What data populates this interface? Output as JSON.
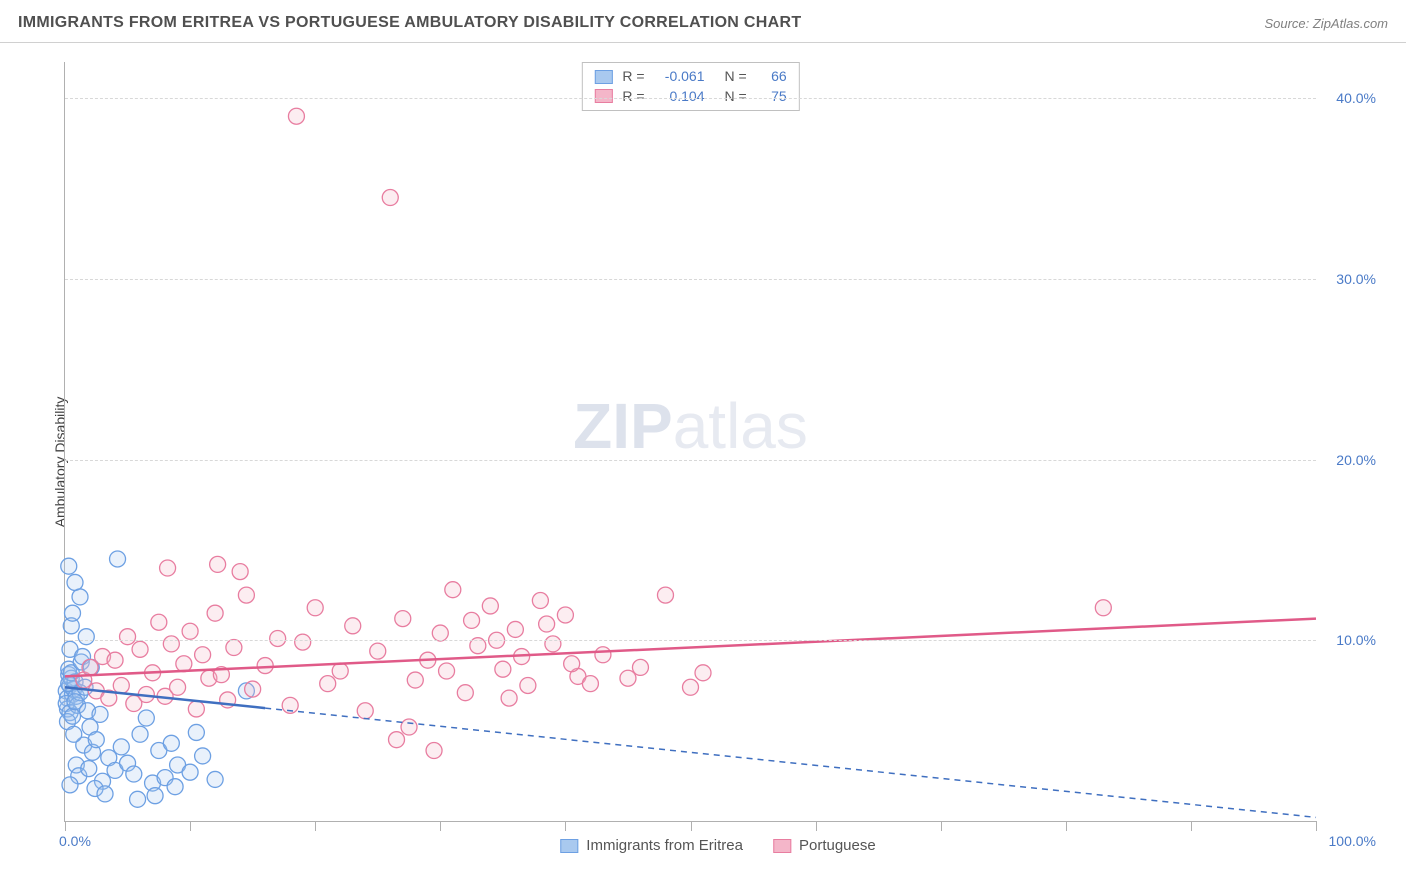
{
  "title": "IMMIGRANTS FROM ERITREA VS PORTUGUESE AMBULATORY DISABILITY CORRELATION CHART",
  "source": "Source: ZipAtlas.com",
  "ylabel": "Ambulatory Disability",
  "watermark_bold": "ZIP",
  "watermark_light": "atlas",
  "chart": {
    "type": "scatter",
    "xlim": [
      0,
      100
    ],
    "ylim": [
      0,
      42
    ],
    "yticks": [
      10,
      20,
      30,
      40
    ],
    "ytick_labels": [
      "10.0%",
      "20.0%",
      "30.0%",
      "40.0%"
    ],
    "xticks_minor": [
      0,
      10,
      20,
      30,
      40,
      50,
      60,
      70,
      80,
      90,
      100
    ],
    "x_origin_label": "0.0%",
    "x_end_label": "100.0%",
    "ylabel_right_color": "#4a7ac7",
    "grid_color": "#d8d8d8",
    "background_color": "#ffffff",
    "marker_radius": 8,
    "series": [
      {
        "name": "Immigrants from Eritrea",
        "color_stroke": "#6da0e3",
        "color_fill": "#a9c9ef",
        "R": "-0.061",
        "N": "66",
        "trend": {
          "x1": 0,
          "y1": 7.4,
          "x2": 100,
          "y2": 0.2,
          "solid_until_x": 16,
          "color": "#3f6fc0"
        },
        "points": [
          [
            0.1,
            7.2
          ],
          [
            0.2,
            6.8
          ],
          [
            0.3,
            8.1
          ],
          [
            0.4,
            7.5
          ],
          [
            0.2,
            6.2
          ],
          [
            0.5,
            7.9
          ],
          [
            0.6,
            7.0
          ],
          [
            0.3,
            8.4
          ],
          [
            0.1,
            6.5
          ],
          [
            0.7,
            7.3
          ],
          [
            0.4,
            6.0
          ],
          [
            0.8,
            7.7
          ],
          [
            0.2,
            5.5
          ],
          [
            0.9,
            6.9
          ],
          [
            0.5,
            8.2
          ],
          [
            0.3,
            7.6
          ],
          [
            1.0,
            6.4
          ],
          [
            0.6,
            5.8
          ],
          [
            1.2,
            7.1
          ],
          [
            0.8,
            6.6
          ],
          [
            1.5,
            4.2
          ],
          [
            0.9,
            3.1
          ],
          [
            1.1,
            2.5
          ],
          [
            1.3,
            8.8
          ],
          [
            0.4,
            9.5
          ],
          [
            1.6,
            7.4
          ],
          [
            0.7,
            4.8
          ],
          [
            2.0,
            5.2
          ],
          [
            1.8,
            6.1
          ],
          [
            2.2,
            3.8
          ],
          [
            1.4,
            9.1
          ],
          [
            2.5,
            4.5
          ],
          [
            0.5,
            10.8
          ],
          [
            1.9,
            2.9
          ],
          [
            2.8,
            5.9
          ],
          [
            3.0,
            2.2
          ],
          [
            0.6,
            11.5
          ],
          [
            3.5,
            3.5
          ],
          [
            1.7,
            10.2
          ],
          [
            4.0,
            2.8
          ],
          [
            0.8,
            13.2
          ],
          [
            4.5,
            4.1
          ],
          [
            2.1,
            8.5
          ],
          [
            5.0,
            3.2
          ],
          [
            0.3,
            14.1
          ],
          [
            5.5,
            2.6
          ],
          [
            6.0,
            4.8
          ],
          [
            1.2,
            12.4
          ],
          [
            4.2,
            14.5
          ],
          [
            7.0,
            2.1
          ],
          [
            7.5,
            3.9
          ],
          [
            2.4,
            1.8
          ],
          [
            8.0,
            2.4
          ],
          [
            3.2,
            1.5
          ],
          [
            8.5,
            4.3
          ],
          [
            0.4,
            2.0
          ],
          [
            9.0,
            3.1
          ],
          [
            10.0,
            2.7
          ],
          [
            7.2,
            1.4
          ],
          [
            11.0,
            3.6
          ],
          [
            5.8,
            1.2
          ],
          [
            12.0,
            2.3
          ],
          [
            8.8,
            1.9
          ],
          [
            14.5,
            7.2
          ],
          [
            6.5,
            5.7
          ],
          [
            10.5,
            4.9
          ]
        ]
      },
      {
        "name": "Portuguese",
        "color_stroke": "#e87da0",
        "color_fill": "#f4b6c9",
        "R": "0.104",
        "N": "75",
        "trend": {
          "x1": 0,
          "y1": 8.0,
          "x2": 100,
          "y2": 11.2,
          "solid_until_x": 100,
          "color": "#e05a88"
        },
        "points": [
          [
            1.5,
            7.8
          ],
          [
            2.0,
            8.5
          ],
          [
            2.5,
            7.2
          ],
          [
            3.0,
            9.1
          ],
          [
            3.5,
            6.8
          ],
          [
            4.0,
            8.9
          ],
          [
            4.5,
            7.5
          ],
          [
            5.0,
            10.2
          ],
          [
            5.5,
            6.5
          ],
          [
            6.0,
            9.5
          ],
          [
            6.5,
            7.0
          ],
          [
            7.0,
            8.2
          ],
          [
            7.5,
            11.0
          ],
          [
            8.0,
            6.9
          ],
          [
            8.5,
            9.8
          ],
          [
            9.0,
            7.4
          ],
          [
            9.5,
            8.7
          ],
          [
            10.0,
            10.5
          ],
          [
            10.5,
            6.2
          ],
          [
            11.0,
            9.2
          ],
          [
            11.5,
            7.9
          ],
          [
            12.0,
            11.5
          ],
          [
            12.5,
            8.1
          ],
          [
            13.0,
            6.7
          ],
          [
            13.5,
            9.6
          ],
          [
            14.0,
            13.8
          ],
          [
            14.5,
            12.5
          ],
          [
            15.0,
            7.3
          ],
          [
            16.0,
            8.6
          ],
          [
            17.0,
            10.1
          ],
          [
            18.0,
            6.4
          ],
          [
            19.0,
            9.9
          ],
          [
            20.0,
            11.8
          ],
          [
            21.0,
            7.6
          ],
          [
            22.0,
            8.3
          ],
          [
            23.0,
            10.8
          ],
          [
            24.0,
            6.1
          ],
          [
            25.0,
            9.4
          ],
          [
            26.0,
            34.5
          ],
          [
            27.0,
            11.2
          ],
          [
            28.0,
            7.8
          ],
          [
            29.0,
            8.9
          ],
          [
            30.0,
            10.4
          ],
          [
            31.0,
            12.8
          ],
          [
            32.0,
            7.1
          ],
          [
            33.0,
            9.7
          ],
          [
            34.0,
            11.9
          ],
          [
            35.0,
            8.4
          ],
          [
            36.0,
            10.6
          ],
          [
            37.0,
            7.5
          ],
          [
            38.0,
            12.2
          ],
          [
            39.0,
            9.8
          ],
          [
            40.0,
            11.4
          ],
          [
            41.0,
            8.0
          ],
          [
            34.5,
            10.0
          ],
          [
            35.5,
            6.8
          ],
          [
            27.5,
            5.2
          ],
          [
            42.0,
            7.6
          ],
          [
            43.0,
            9.2
          ],
          [
            48.0,
            12.5
          ],
          [
            45.0,
            7.9
          ],
          [
            46.0,
            8.5
          ],
          [
            50.0,
            7.4
          ],
          [
            51.0,
            8.2
          ],
          [
            18.5,
            39.0
          ],
          [
            26.5,
            4.5
          ],
          [
            29.5,
            3.9
          ],
          [
            36.5,
            9.1
          ],
          [
            38.5,
            10.9
          ],
          [
            40.5,
            8.7
          ],
          [
            30.5,
            8.3
          ],
          [
            32.5,
            11.1
          ],
          [
            83.0,
            11.8
          ],
          [
            8.2,
            14.0
          ],
          [
            12.2,
            14.2
          ]
        ]
      }
    ]
  },
  "legend_top": {
    "R_label": "R =",
    "N_label": "N ="
  },
  "legend_bottom_labels": [
    "Immigrants from Eritrea",
    "Portuguese"
  ]
}
